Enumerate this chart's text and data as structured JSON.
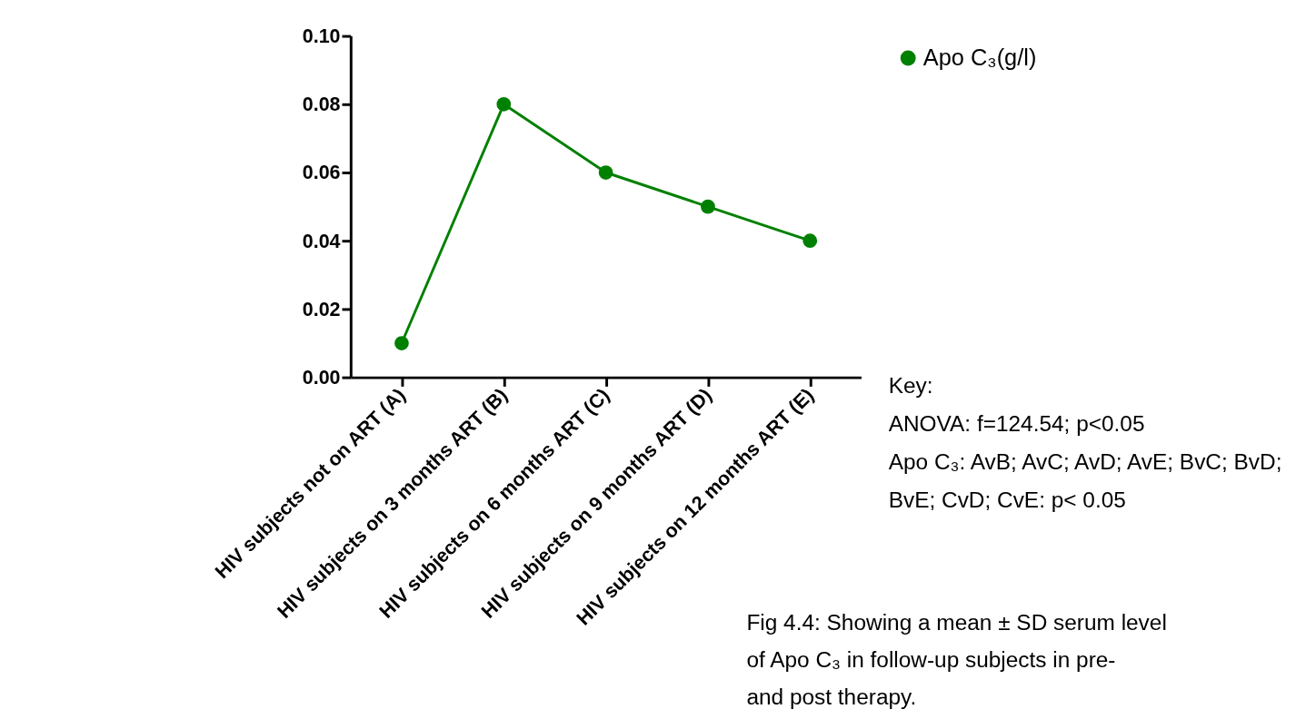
{
  "chart_data": {
    "type": "line",
    "categories": [
      "HIV subjects not on ART (A)",
      "HIV subjects on 3 months ART (B)",
      "HIV subjects on 6 months ART (C)",
      "HIV subjects on 9 months ART (D)",
      "HIV subjects on 12 months ART (E)"
    ],
    "series": [
      {
        "name": "Apo C₃(g/l)",
        "color": "#008000",
        "values": [
          0.01,
          0.08,
          0.06,
          0.05,
          0.04
        ]
      }
    ],
    "ylim": [
      0,
      0.1
    ],
    "yticks": [
      {
        "value": 0,
        "label": "0.00"
      },
      {
        "value": 0.02,
        "label": "0.02"
      },
      {
        "value": 0.04,
        "label": "0.04"
      },
      {
        "value": 0.06,
        "label": "0.06"
      },
      {
        "value": 0.08,
        "label": "0.08"
      },
      {
        "value": 0.1,
        "label": "0.10"
      }
    ],
    "marker": "circle",
    "line_style": "solid",
    "grid": false,
    "legend": "top right",
    "annotations": [
      "Key:",
      "ANOVA: f=124.54; p<0.05",
      "Apo C₃: AvB; AvC; AvD; AvE; BvC; BvD; BvE; CvD; CvE: p< 0.05",
      "Fig 4.4: Showing a mean ± SD serum level of Apo C₃ in follow-up subjects in pre- and post therapy."
    ]
  }
}
